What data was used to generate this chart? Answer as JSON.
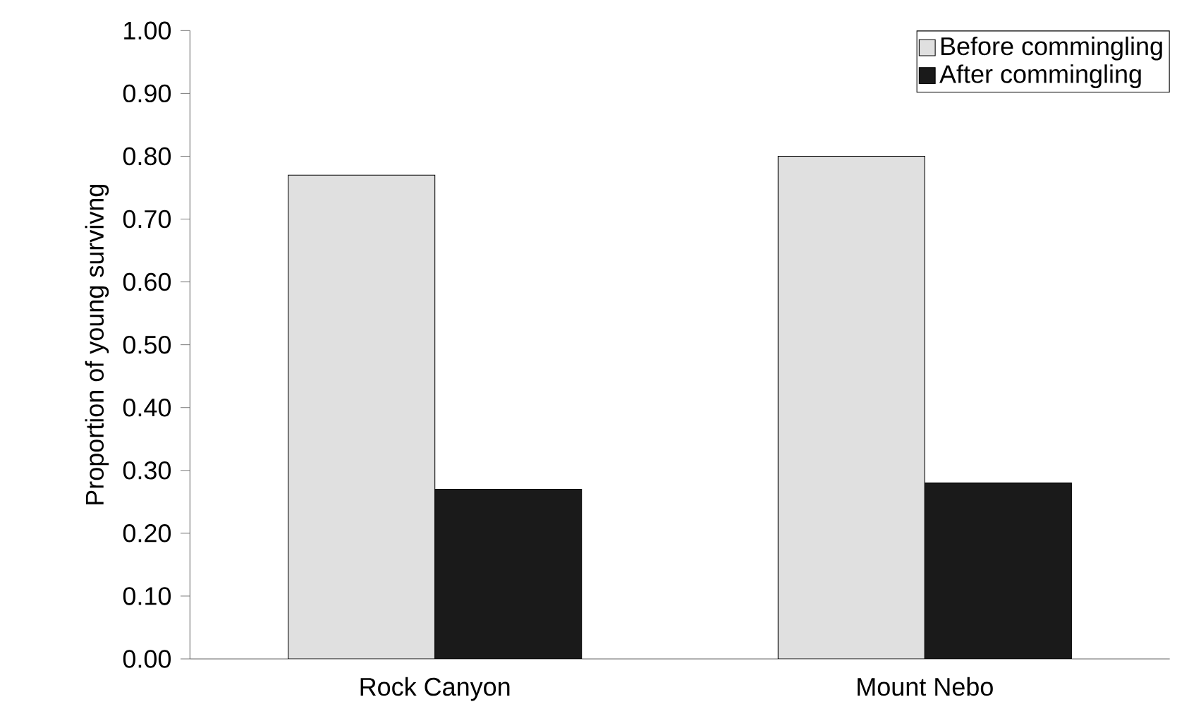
{
  "chart_data": {
    "type": "bar",
    "ylabel": "Proportion of young survivng",
    "categories": [
      "Rock Canyon",
      "Mount Nebo"
    ],
    "series": [
      {
        "name": "Before commingling",
        "color": "#e0e0e0",
        "values": [
          0.77,
          0.8
        ]
      },
      {
        "name": "After commingling",
        "color": "#1a1a1a",
        "values": [
          0.27,
          0.28
        ]
      }
    ],
    "ylim": [
      0,
      1
    ],
    "yticks": [
      {
        "value": 0,
        "label": "0.00"
      },
      {
        "value": 0.1,
        "label": "0.10"
      },
      {
        "value": 0.2,
        "label": "0.20"
      },
      {
        "value": 0.3,
        "label": "0.30"
      },
      {
        "value": 0.4,
        "label": "0.40"
      },
      {
        "value": 0.5,
        "label": "0.50"
      },
      {
        "value": 0.6,
        "label": "0.60"
      },
      {
        "value": 0.7,
        "label": "0.70"
      },
      {
        "value": 0.8,
        "label": "0.80"
      },
      {
        "value": 0.9,
        "label": "0.90"
      },
      {
        "value": 1,
        "label": "1.00"
      }
    ],
    "legend": "top right",
    "grid": false
  }
}
